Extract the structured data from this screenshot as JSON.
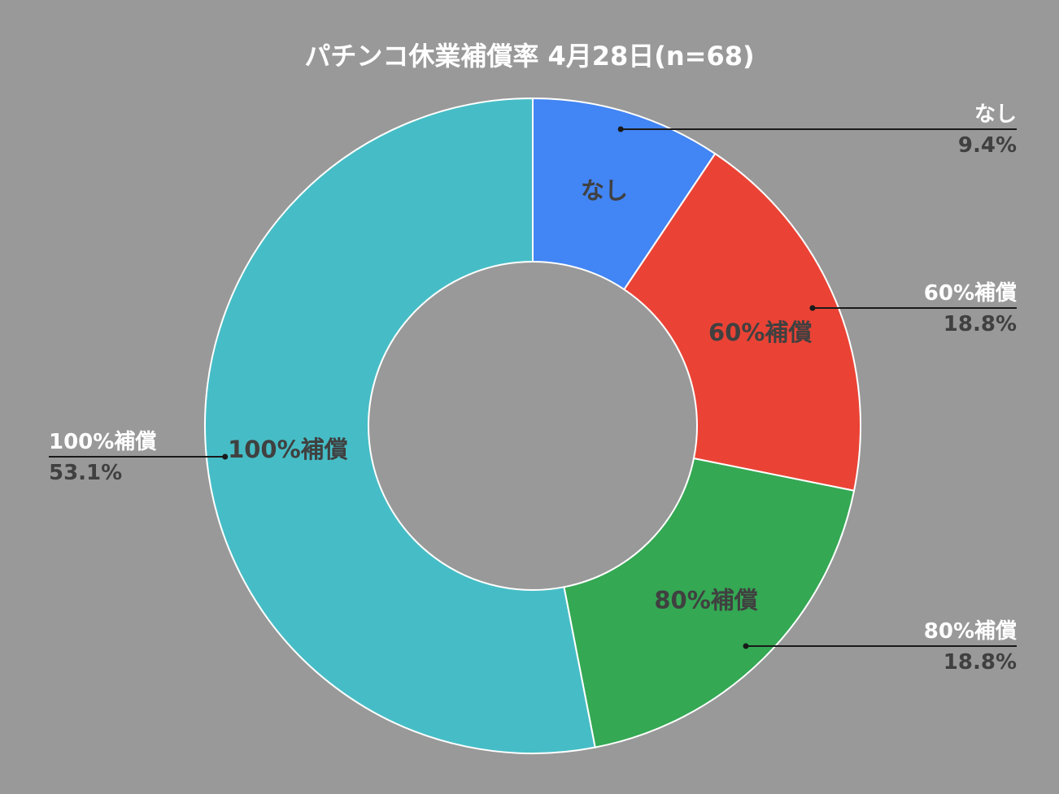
{
  "chart_data": {
    "type": "pie",
    "donut": true,
    "title": "パチンコ休業補償率 4月28日(n=68)",
    "series": [
      {
        "name": "なし",
        "value": 9.4,
        "label": "9.4%",
        "color": "#4285F4"
      },
      {
        "name": "60%補償",
        "value": 18.8,
        "label": "18.8%",
        "color": "#EA4335"
      },
      {
        "name": "80%補償",
        "value": 18.8,
        "label": "18.8%",
        "color": "#34A853"
      },
      {
        "name": "100%補償",
        "value": 53.1,
        "label": "53.1%",
        "color": "#46BDC6"
      }
    ],
    "legend": "none",
    "background": "#999999"
  }
}
